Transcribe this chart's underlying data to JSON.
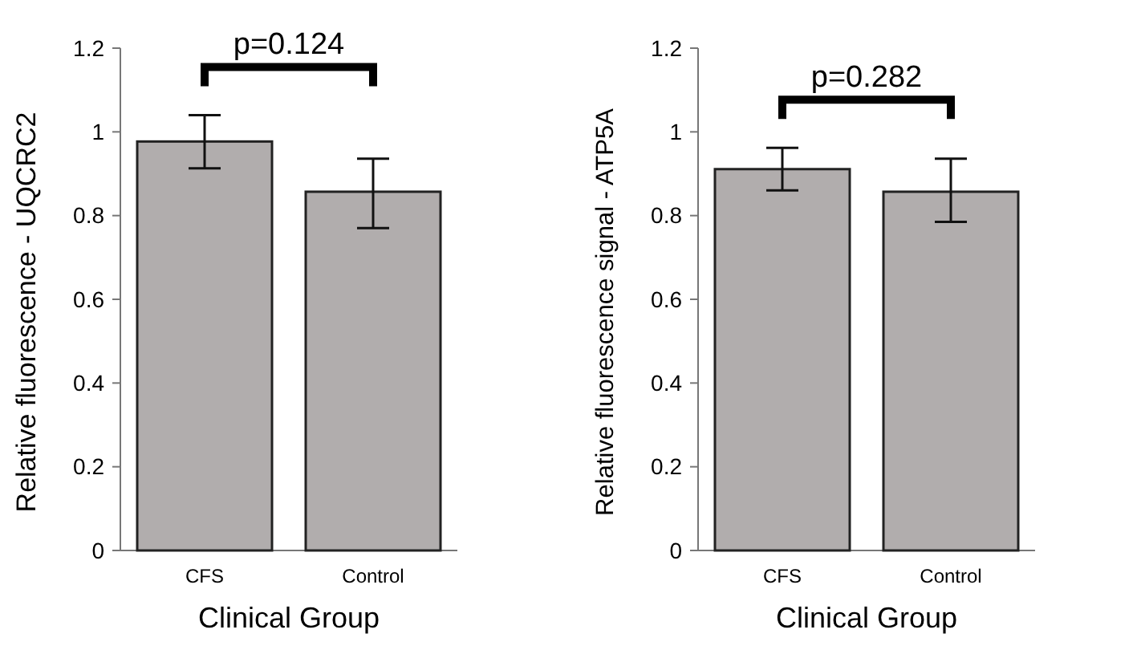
{
  "chart_data": [
    {
      "type": "bar",
      "xlabel": "Clinical Group",
      "ylabel": "Relative fluorescence - UQCRC2",
      "categories": [
        "CFS",
        "Control"
      ],
      "values": [
        0.977,
        0.857
      ],
      "errors": [
        [
          0.913,
          1.04
        ],
        [
          0.77,
          0.936
        ]
      ],
      "color": "#b1adad",
      "ylim": [
        0,
        1.2
      ],
      "yticks": [
        0,
        0.2,
        0.4,
        0.6,
        0.8,
        1,
        1.2
      ],
      "annotations": [
        "p=0.124"
      ]
    },
    {
      "type": "bar",
      "xlabel": "Clinical Group",
      "ylabel": "Relative fluorescence signal - ATP5A",
      "categories": [
        "CFS",
        "Control"
      ],
      "values": [
        0.911,
        0.857
      ],
      "errors": [
        [
          0.86,
          0.962
        ],
        [
          0.785,
          0.936
        ]
      ],
      "color": "#b1adad",
      "ylim": [
        0,
        1.2
      ],
      "yticks": [
        0,
        0.2,
        0.4,
        0.6,
        0.8,
        1,
        1.2
      ],
      "annotations": [
        "p=0.282"
      ]
    }
  ]
}
